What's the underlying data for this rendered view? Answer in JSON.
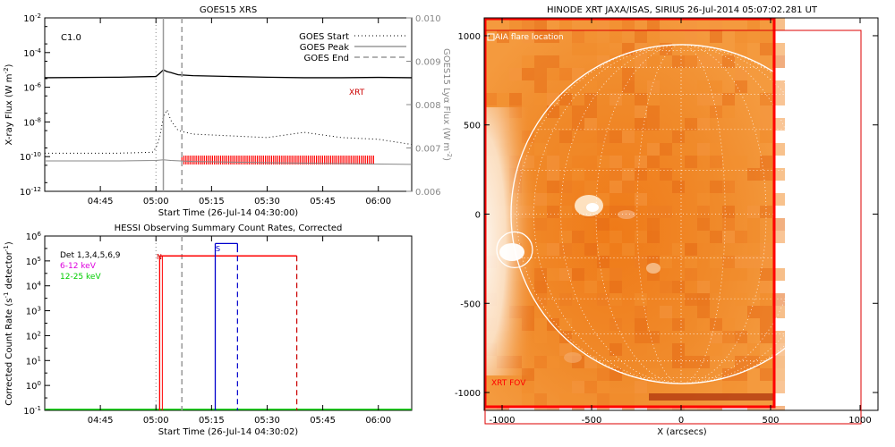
{
  "chart_data": [
    {
      "type": "line",
      "title": "GOES15 XRS",
      "flare_class": "C1.0",
      "xlabel": "Start Time (26-Jul-14 04:30:00)",
      "ylabel": "X-ray Flux (W m",
      "ylabel_sup": "-2",
      "y2label": "GOES15 Lyα Flux (W m",
      "y2label_sup": "-2",
      "x_ticks": [
        "04:45",
        "05:00",
        "05:15",
        "05:30",
        "05:45",
        "06:00"
      ],
      "y_ticks": [
        "10",
        "10",
        "10",
        "10",
        "10",
        "10"
      ],
      "y_tick_exps": [
        "-2",
        "-4",
        "-6",
        "-8",
        "-10",
        "-12"
      ],
      "y2_ticks": [
        "0.010",
        "0.009",
        "0.008",
        "0.007",
        "0.006"
      ],
      "ylim_log10": [
        -12,
        -2
      ],
      "y2lim": [
        0.006,
        0.01
      ],
      "xlim_minutes_after_0430": [
        0,
        99
      ],
      "legend": [
        "GOES Start",
        "GOES Peak",
        "GOES End"
      ],
      "legend_position": "top-right",
      "markers_minutes_after_0430": {
        "start": 30,
        "peak": 32,
        "end": 37
      },
      "series": [
        {
          "name": "XRT",
          "color": "#000000",
          "x": [
            0,
            20,
            30,
            31,
            32,
            33,
            34,
            36,
            40,
            50,
            60,
            70,
            80,
            90,
            99
          ],
          "log10_y": [
            -5.45,
            -5.42,
            -5.38,
            -5.2,
            -5.0,
            -5.1,
            -5.15,
            -5.28,
            -5.33,
            -5.38,
            -5.42,
            -5.45,
            -5.45,
            -5.43,
            -5.45
          ]
        }
      ],
      "lya_curve_x": [
        0,
        20,
        29,
        30,
        31,
        32,
        33,
        34,
        36,
        40,
        50,
        60,
        70,
        80,
        90,
        99
      ],
      "lya_curve_log10": [
        -9.8,
        -9.8,
        -9.75,
        -9.5,
        -8.9,
        -7.7,
        -7.3,
        -7.9,
        -8.5,
        -8.7,
        -8.8,
        -8.9,
        -8.6,
        -8.9,
        -9.0,
        -9.3
      ],
      "grey_curve_x": [
        0,
        20,
        30,
        32,
        34,
        40,
        60,
        80,
        99
      ],
      "grey_curve_log10": [
        -10.25,
        -10.25,
        -10.22,
        -10.18,
        -10.22,
        -10.28,
        -10.35,
        -10.4,
        -10.45
      ],
      "red_band_minutes_after_0430": [
        37,
        89
      ],
      "xrt_label": "XRT"
    },
    {
      "type": "line",
      "title": "HESSI Observing Summary Count Rates, Corrected",
      "xlabel": "Start Time (26-Jul-14 04:30:02)",
      "ylabel": "Corrected Count Rate (s",
      "ylabel_sup": "-1",
      "ylabel_tail": " detector",
      "ylabel_sup2": "-1",
      "ylabel_end": ")",
      "x_ticks": [
        "04:45",
        "05:00",
        "05:15",
        "05:30",
        "05:45",
        "06:00"
      ],
      "y_tick_exps": [
        "6",
        "5",
        "4",
        "3",
        "2",
        "1",
        "0",
        "-1"
      ],
      "y_tick_base": "10",
      "ylim_log10": [
        -1,
        6
      ],
      "xlim_minutes_after_0430": [
        0,
        99
      ],
      "legend": [
        {
          "label": "Det 1,3,4,5,6,9",
          "color": "#000000"
        },
        {
          "label": "6-12 keV",
          "color": "#dd00dd"
        },
        {
          "label": "12-25 keV",
          "color": "#00cc00"
        }
      ],
      "legend_position": "top-left",
      "markers_minutes_after_0430": {
        "start": 30,
        "peak": 32,
        "end": 37
      },
      "night_label": "N",
      "saa_label": "S",
      "night_start": 31,
      "saa_start": 46,
      "saa_end": 52,
      "hessi_high_x": [
        31,
        68
      ],
      "hessi_high_log10": 5.2,
      "red_dashed_x": 68
    },
    {
      "type": "image",
      "title": "HINODE XRT JAXA/ISAS, SIRIUS 26-Jul-2014 05:07:02.281 UT",
      "xlabel": "X (arcsecs)",
      "x_ticks": [
        "-1000",
        "-500",
        "0",
        "500",
        "1000"
      ],
      "y_ticks": [
        "1000",
        "500",
        "0",
        "-500",
        "-1000"
      ],
      "xlim": [
        -1100,
        1100
      ],
      "ylim": [
        -1100,
        1100
      ],
      "fov_label": "XRT FOV",
      "flare_label": "AIA flare location",
      "flare_center": [
        -930,
        -200
      ],
      "solar_radius_arcsec": 950,
      "fov_x": [
        -1100,
        520
      ],
      "colors": {
        "sun": "#f28a2a",
        "disk_edge": "#ffffff",
        "fov": "#ff0000"
      }
    }
  ]
}
